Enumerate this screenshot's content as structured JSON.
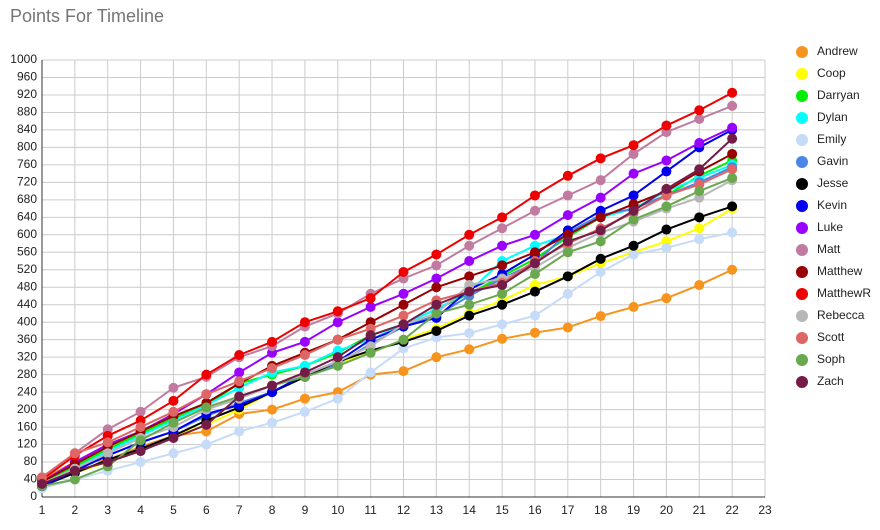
{
  "chart_data": {
    "type": "line",
    "title": "Points For Timeline",
    "x": [
      1,
      2,
      3,
      4,
      5,
      6,
      7,
      8,
      9,
      10,
      11,
      12,
      13,
      14,
      15,
      16,
      17,
      18,
      19,
      20,
      21,
      22
    ],
    "xlim": [
      1,
      23
    ],
    "xticks": [
      1,
      2,
      3,
      4,
      5,
      6,
      7,
      8,
      9,
      10,
      11,
      12,
      13,
      14,
      15,
      16,
      17,
      18,
      19,
      20,
      21,
      22,
      23
    ],
    "ylim": [
      0,
      1000
    ],
    "yticks": [
      0,
      40,
      80,
      120,
      160,
      200,
      240,
      280,
      320,
      360,
      400,
      440,
      480,
      520,
      560,
      600,
      640,
      680,
      720,
      760,
      800,
      840,
      880,
      920,
      960,
      1000
    ],
    "grid": true,
    "legend": "right",
    "series": [
      {
        "name": "Andrew",
        "color": "#f7941d",
        "values": [
          40,
          80,
          85,
          115,
          140,
          150,
          190,
          200,
          225,
          240,
          280,
          288,
          320,
          338,
          362,
          376,
          388,
          414,
          435,
          455,
          485,
          520
        ]
      },
      {
        "name": "Coop",
        "color": "#ffff00",
        "values": [
          30,
          55,
          80,
          110,
          140,
          165,
          200,
          240,
          275,
          305,
          330,
          360,
          385,
          420,
          450,
          485,
          505,
          535,
          560,
          585,
          615,
          660
        ]
      },
      {
        "name": "Darryan",
        "color": "#00ee00",
        "values": [
          35,
          70,
          110,
          145,
          180,
          210,
          260,
          280,
          300,
          330,
          370,
          395,
          430,
          465,
          505,
          545,
          595,
          640,
          660,
          690,
          735,
          770
        ]
      },
      {
        "name": "Dylan",
        "color": "#00ffff",
        "values": [
          30,
          65,
          105,
          140,
          175,
          210,
          250,
          285,
          300,
          335,
          360,
          395,
          430,
          470,
          540,
          575,
          600,
          640,
          660,
          700,
          730,
          760
        ]
      },
      {
        "name": "Emily",
        "color": "#c6dbf7",
        "values": [
          20,
          40,
          60,
          80,
          100,
          120,
          150,
          170,
          195,
          225,
          285,
          340,
          365,
          375,
          395,
          415,
          465,
          515,
          555,
          570,
          590,
          605
        ]
      },
      {
        "name": "Gavin",
        "color": "#4a86e8",
        "values": [
          25,
          60,
          95,
          125,
          150,
          185,
          215,
          240,
          275,
          305,
          350,
          390,
          415,
          460,
          500,
          535,
          605,
          645,
          660,
          690,
          720,
          755
        ]
      },
      {
        "name": "Jesse",
        "color": "#000000",
        "values": [
          25,
          55,
          85,
          110,
          140,
          175,
          205,
          240,
          275,
          310,
          335,
          355,
          380,
          415,
          440,
          470,
          505,
          545,
          575,
          612,
          640,
          665
        ]
      },
      {
        "name": "Kevin",
        "color": "#0000ee",
        "values": [
          25,
          60,
          95,
          125,
          150,
          190,
          210,
          240,
          280,
          310,
          360,
          390,
          410,
          475,
          510,
          555,
          610,
          655,
          690,
          745,
          800,
          840
        ]
      },
      {
        "name": "Luke",
        "color": "#9900ff",
        "values": [
          35,
          80,
          120,
          150,
          190,
          235,
          285,
          330,
          355,
          400,
          435,
          465,
          500,
          540,
          575,
          600,
          645,
          685,
          740,
          770,
          810,
          845
        ]
      },
      {
        "name": "Matt",
        "color": "#c27ba0",
        "values": [
          45,
          100,
          155,
          195,
          250,
          275,
          320,
          345,
          390,
          420,
          465,
          500,
          530,
          575,
          615,
          655,
          690,
          725,
          785,
          835,
          865,
          895
        ]
      },
      {
        "name": "Matthew",
        "color": "#990000",
        "values": [
          35,
          75,
          115,
          150,
          185,
          215,
          260,
          300,
          330,
          360,
          400,
          440,
          480,
          505,
          530,
          560,
          600,
          640,
          670,
          700,
          745,
          785
        ]
      },
      {
        "name": "MatthewR",
        "color": "#ee0000",
        "values": [
          40,
          95,
          140,
          175,
          220,
          280,
          325,
          355,
          400,
          425,
          455,
          515,
          555,
          600,
          640,
          690,
          735,
          775,
          805,
          850,
          885,
          925
        ]
      },
      {
        "name": "Rebecca",
        "color": "#b7b7b7",
        "values": [
          30,
          65,
          100,
          135,
          160,
          200,
          225,
          255,
          280,
          310,
          345,
          395,
          420,
          485,
          500,
          525,
          570,
          605,
          630,
          660,
          685,
          725
        ]
      },
      {
        "name": "Scott",
        "color": "#e06666",
        "values": [
          45,
          100,
          125,
          160,
          195,
          235,
          265,
          295,
          325,
          360,
          385,
          415,
          450,
          470,
          490,
          540,
          580,
          615,
          650,
          690,
          715,
          750
        ]
      },
      {
        "name": "Soph",
        "color": "#6aa84f",
        "values": [
          25,
          40,
          70,
          130,
          170,
          205,
          230,
          255,
          275,
          300,
          330,
          360,
          420,
          440,
          465,
          510,
          560,
          585,
          635,
          665,
          700,
          730
        ]
      },
      {
        "name": "Zach",
        "color": "#741b47",
        "values": [
          30,
          60,
          80,
          105,
          135,
          165,
          230,
          255,
          285,
          320,
          370,
          395,
          440,
          470,
          485,
          535,
          585,
          610,
          655,
          705,
          750,
          820
        ]
      }
    ]
  }
}
